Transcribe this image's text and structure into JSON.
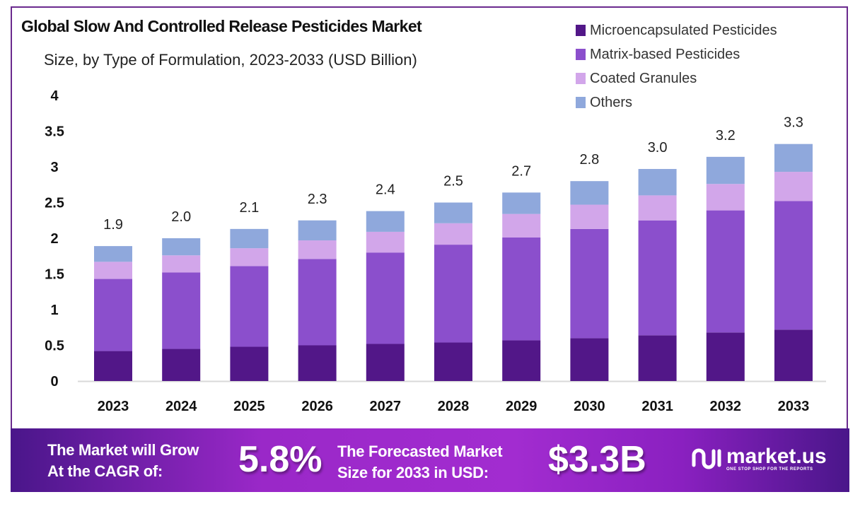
{
  "chart_data": {
    "type": "bar",
    "stacked": true,
    "title": "Global Slow And Controlled Release Pesticides Market",
    "subtitle": "Size, by Type of Formulation, 2023-2033 (USD Billion)",
    "xlabel": "",
    "ylabel": "",
    "ylim": [
      0,
      4
    ],
    "yticks": [
      "0",
      "0.5",
      "1",
      "1.5",
      "2",
      "2.5",
      "3",
      "3.5",
      "4"
    ],
    "grid": false,
    "legend_position": "top-right",
    "categories": [
      "2023",
      "2024",
      "2025",
      "2026",
      "2027",
      "2028",
      "2029",
      "2030",
      "2031",
      "2032",
      "2033"
    ],
    "totals": [
      "1.9",
      "2.0",
      "2.1",
      "2.3",
      "2.4",
      "2.5",
      "2.7",
      "2.8",
      "3.0",
      "3.2",
      "3.3"
    ],
    "series": [
      {
        "name": "Microencapsulated Pesticides",
        "color": "#521788",
        "values": [
          0.42,
          0.45,
          0.48,
          0.5,
          0.52,
          0.54,
          0.57,
          0.6,
          0.64,
          0.68,
          0.72
        ]
      },
      {
        "name": "Matrix-based Pesticides",
        "color": "#8b4fcc",
        "values": [
          1.01,
          1.07,
          1.13,
          1.21,
          1.28,
          1.37,
          1.44,
          1.53,
          1.61,
          1.71,
          1.8
        ]
      },
      {
        "name": "Coated Granules",
        "color": "#d2a6ea",
        "values": [
          0.24,
          0.24,
          0.25,
          0.26,
          0.29,
          0.3,
          0.33,
          0.34,
          0.35,
          0.37,
          0.41
        ]
      },
      {
        "name": "Others",
        "color": "#8fa8dc",
        "values": [
          0.22,
          0.24,
          0.27,
          0.28,
          0.29,
          0.29,
          0.3,
          0.33,
          0.37,
          0.38,
          0.39
        ]
      }
    ]
  },
  "footer": {
    "cagr_label_line1": "The Market will Grow",
    "cagr_label_line2": "At the CAGR of:",
    "cagr_value": "5.8%",
    "forecast_label_line1": "The Forecasted Market",
    "forecast_label_line2": "Size for 2033 in USD:",
    "forecast_value": "$3.3B",
    "brand_name": "market.us",
    "brand_tagline": "ONE STOP SHOP FOR THE REPORTS"
  }
}
